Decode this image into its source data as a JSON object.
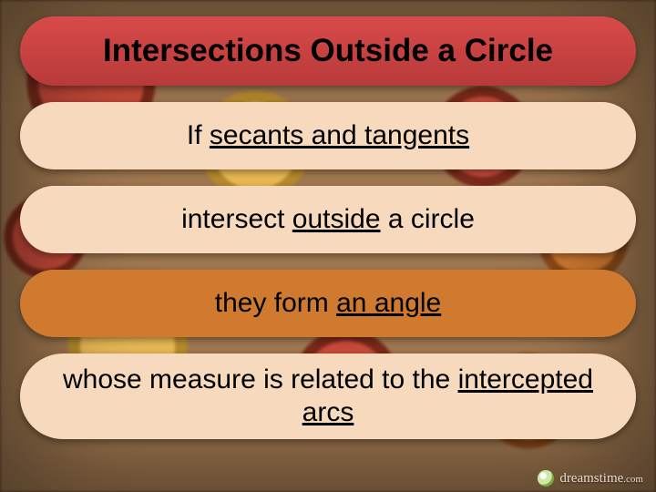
{
  "title": "Intersections Outside a Circle",
  "lines": {
    "l1": {
      "pre": "If ",
      "u": "secants and tangents"
    },
    "l2": {
      "pre": "intersect ",
      "u": "outside",
      "post": " a circle"
    },
    "l3": {
      "pre": "they form ",
      "u": "an angle"
    },
    "l4": {
      "pre": "whose measure is related to the ",
      "u": "intercepted arcs"
    }
  },
  "colors": {
    "title_bg_top": "#d94a4a",
    "title_bg_bottom": "#b83a3a",
    "light_pill": "#f7d9bd",
    "orange_pill": "#d07a30",
    "text": "#000000"
  },
  "watermark": {
    "text": "dreamstime",
    "tld": ".com"
  }
}
